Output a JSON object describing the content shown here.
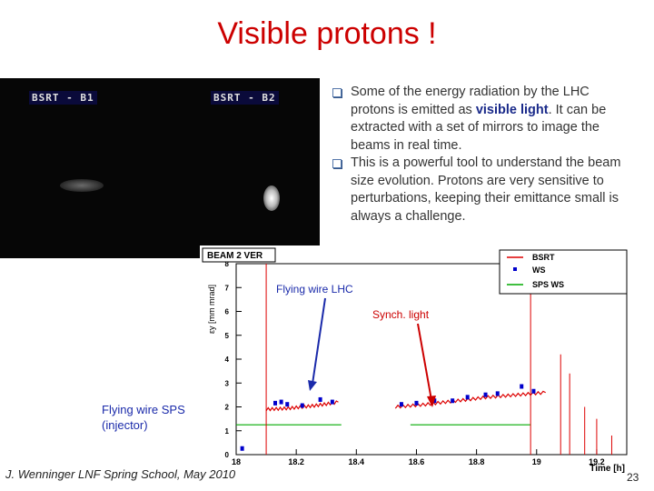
{
  "title": "Visible protons !",
  "camera": {
    "label_b1": "BSRT - B1",
    "label_b2": "BSRT - B2"
  },
  "bullets": [
    {
      "before": "Some of the energy radiation by the LHC protons is emitted as ",
      "highlight": "visible light",
      "after": ". It can be extracted with a set of mirrors to image the beams in real time."
    },
    {
      "before": "This is a powerful tool to understand the beam size evolution. Protons are very sensitive to perturbations, keeping their emittance small is always a challenge.",
      "highlight": "",
      "after": ""
    }
  ],
  "annotations": {
    "flying_wire_lhc": "Flying wire LHC",
    "synch_light": "Synch. light",
    "flying_wire_sps_1": "Flying wire SPS",
    "flying_wire_sps_2": "(injector)"
  },
  "footer": "J. Wenninger LNF Spring School, May 2010",
  "page_number": "23",
  "colors": {
    "title": "#cc0000",
    "bsrt": "#dd0000",
    "ws": "#0000cc",
    "sps_ws": "#00aa00",
    "annotation": "#1a2aaa"
  },
  "chart_data": {
    "type": "line",
    "title": "BEAM 2 VER",
    "xlabel": "Time [h]",
    "ylabel": "εy [mm mrad]",
    "xlim": [
      18,
      19.3
    ],
    "ylim": [
      0,
      8
    ],
    "x_ticks": [
      "18",
      "18.2",
      "18.4",
      "18.6",
      "18.8",
      "19",
      "19.2"
    ],
    "y_ticks": [
      "0",
      "1",
      "2",
      "3",
      "4",
      "5",
      "6",
      "7",
      "8"
    ],
    "legend": [
      "BSRT",
      "WS",
      "SPS WS"
    ],
    "legend_position": "top-right",
    "bsrt_segments": [
      [
        [
          18.1,
          1.9
        ],
        [
          18.14,
          1.92
        ],
        [
          18.18,
          1.95
        ],
        [
          18.22,
          2.0
        ],
        [
          18.26,
          2.05
        ],
        [
          18.3,
          2.12
        ],
        [
          18.34,
          2.2
        ]
      ],
      [
        [
          18.53,
          2.0
        ],
        [
          18.58,
          2.05
        ],
        [
          18.63,
          2.1
        ],
        [
          18.68,
          2.18
        ],
        [
          18.73,
          2.25
        ],
        [
          18.78,
          2.32
        ],
        [
          18.83,
          2.4
        ],
        [
          18.88,
          2.45
        ],
        [
          18.93,
          2.5
        ],
        [
          18.98,
          2.55
        ],
        [
          19.03,
          2.6
        ]
      ]
    ],
    "bsrt_spikes": [
      [
        18.1,
        8.5
      ],
      [
        18.98,
        8.2
      ],
      [
        19.08,
        4.2
      ],
      [
        19.11,
        3.4
      ],
      [
        19.16,
        2.0
      ],
      [
        19.2,
        1.5
      ],
      [
        19.25,
        0.8
      ]
    ],
    "ws_points": [
      [
        18.13,
        2.1
      ],
      [
        18.15,
        2.15
      ],
      [
        18.17,
        2.05
      ],
      [
        18.22,
        2.0
      ],
      [
        18.28,
        2.25
      ],
      [
        18.32,
        2.15
      ],
      [
        18.55,
        2.05
      ],
      [
        18.6,
        2.1
      ],
      [
        18.66,
        2.2
      ],
      [
        18.72,
        2.2
      ],
      [
        18.77,
        2.35
      ],
      [
        18.83,
        2.45
      ],
      [
        18.87,
        2.5
      ],
      [
        18.95,
        2.8
      ],
      [
        18.99,
        2.6
      ],
      [
        18.02,
        0.2
      ]
    ],
    "sps_ws_segments": [
      [
        [
          18.0,
          1.25
        ],
        [
          18.35,
          1.25
        ]
      ],
      [
        [
          18.58,
          1.25
        ],
        [
          18.98,
          1.25
        ]
      ]
    ]
  }
}
